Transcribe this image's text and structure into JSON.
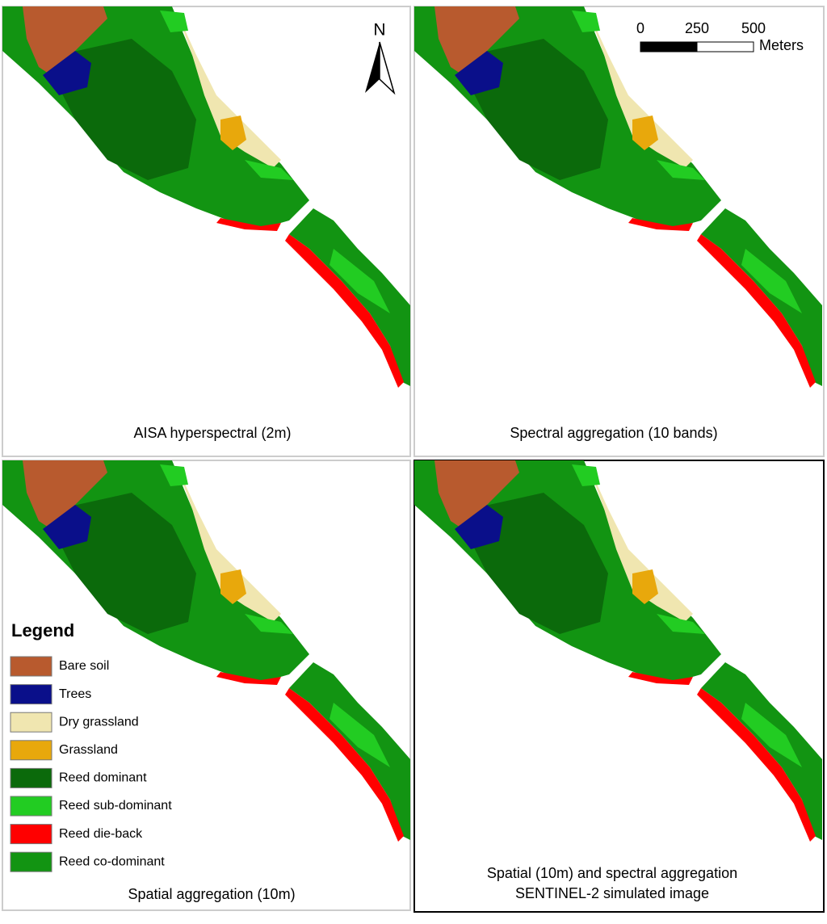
{
  "panels": [
    {
      "caption": "AISA hyperspectral (2m)"
    },
    {
      "caption": "Spectral aggregation (10 bands)"
    },
    {
      "caption": "Spatial aggregation (10m)"
    },
    {
      "caption": [
        "Spatial (10m) and spectral aggregation",
        "SENTINEL-2 simulated image"
      ]
    }
  ],
  "north_arrow": {
    "label": "N"
  },
  "scale_bar": {
    "ticks": [
      0,
      250,
      500
    ],
    "unit": "Meters"
  },
  "legend": {
    "title": "Legend",
    "items": [
      {
        "label": "Bare soil",
        "color": "#b85a2e"
      },
      {
        "label": "Trees",
        "color": "#0a0f8a"
      },
      {
        "label": "Dry grassland",
        "color": "#f0e6b0"
      },
      {
        "label": "Grassland",
        "color": "#e8a80c"
      },
      {
        "label": "Reed dominant",
        "color": "#0b6a0b"
      },
      {
        "label": "Reed sub-dominant",
        "color": "#22cc22"
      },
      {
        "label": "Reed die-back",
        "color": "#ff0000"
      },
      {
        "label": "Reed co-dominant",
        "color": "#129412"
      }
    ]
  }
}
